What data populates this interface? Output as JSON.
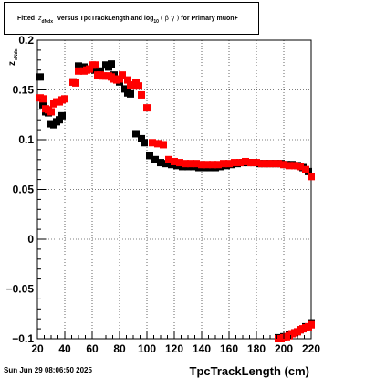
{
  "title": {
    "fitted": "Fitted",
    "z": "z",
    "z_sub": "dNdx",
    "versus": "versus TpcTrackLength and log",
    "log_sub": "10",
    "beta_gamma": "( β γ )",
    "rest": "for Primary muon+"
  },
  "timestamp": "Sun Jun 29 08:06:50 2025",
  "chart_data": {
    "type": "scatter",
    "xlabel": "TpcTrackLength (cm)",
    "ylabel": "z",
    "ylabel_sub": "dNdx",
    "xlim": [
      20,
      220
    ],
    "ylim": [
      -0.1,
      0.2
    ],
    "xticks": [
      20,
      40,
      60,
      80,
      100,
      120,
      140,
      160,
      180,
      200,
      220
    ],
    "yticks": [
      {
        "value": -0.1,
        "label": "−0.1"
      },
      {
        "value": -0.05,
        "label": "−0.05"
      },
      {
        "value": 0,
        "label": "0"
      },
      {
        "value": 0.05,
        "label": "0.05"
      },
      {
        "value": 0.1,
        "label": "0.1"
      },
      {
        "value": 0.15,
        "label": "0.15"
      },
      {
        "value": 0.2,
        "label": "0.2"
      }
    ],
    "grid": true,
    "series": [
      {
        "color": "#000000",
        "points": [
          [
            22,
            0.163
          ],
          [
            24,
            0.135
          ],
          [
            26,
            0.128
          ],
          [
            28,
            0.127
          ],
          [
            30,
            0.116
          ],
          [
            32,
            0.115
          ],
          [
            34,
            0.118
          ],
          [
            36,
            0.12
          ],
          [
            38,
            0.124
          ],
          [
            46,
            0.158
          ],
          [
            50,
            0.174
          ],
          [
            54,
            0.173
          ],
          [
            58,
            0.171
          ],
          [
            62,
            0.17
          ],
          [
            66,
            0.169
          ],
          [
            70,
            0.175
          ],
          [
            72,
            0.173
          ],
          [
            74,
            0.176
          ],
          [
            76,
            0.165
          ],
          [
            80,
            0.158
          ],
          [
            84,
            0.151
          ],
          [
            86,
            0.147
          ],
          [
            88,
            0.146
          ],
          [
            92,
            0.106
          ],
          [
            96,
            0.101
          ],
          [
            98,
            0.097
          ],
          [
            102,
            0.084
          ],
          [
            106,
            0.08
          ],
          [
            110,
            0.077
          ],
          [
            114,
            0.076
          ],
          [
            118,
            0.075
          ],
          [
            122,
            0.074
          ],
          [
            126,
            0.073
          ],
          [
            130,
            0.073
          ],
          [
            134,
            0.073
          ],
          [
            138,
            0.072
          ],
          [
            142,
            0.072
          ],
          [
            146,
            0.072
          ],
          [
            150,
            0.072
          ],
          [
            154,
            0.073
          ],
          [
            158,
            0.074
          ],
          [
            162,
            0.075
          ],
          [
            166,
            0.076
          ],
          [
            170,
            0.077
          ],
          [
            174,
            0.077
          ],
          [
            178,
            0.077
          ],
          [
            182,
            0.076
          ],
          [
            186,
            0.076
          ],
          [
            190,
            0.076
          ],
          [
            194,
            0.076
          ],
          [
            198,
            0.076
          ],
          [
            202,
            0.075
          ],
          [
            206,
            0.075
          ],
          [
            210,
            0.074
          ],
          [
            214,
            0.072
          ],
          [
            218,
            0.068
          ],
          [
            196,
            -0.099
          ],
          [
            200,
            -0.098
          ],
          [
            204,
            -0.096
          ],
          [
            208,
            -0.094
          ],
          [
            212,
            -0.091
          ],
          [
            216,
            -0.088
          ],
          [
            220,
            -0.084
          ]
        ]
      },
      {
        "color": "#ff0000",
        "points": [
          [
            22,
            0.142
          ],
          [
            24,
            0.141
          ],
          [
            26,
            0.131
          ],
          [
            28,
            0.13
          ],
          [
            30,
            0.128
          ],
          [
            32,
            0.136
          ],
          [
            34,
            0.138
          ],
          [
            36,
            0.138
          ],
          [
            38,
            0.14
          ],
          [
            40,
            0.141
          ],
          [
            46,
            0.158
          ],
          [
            48,
            0.157
          ],
          [
            50,
            0.169
          ],
          [
            54,
            0.169
          ],
          [
            56,
            0.17
          ],
          [
            58,
            0.171
          ],
          [
            60,
            0.175
          ],
          [
            62,
            0.175
          ],
          [
            64,
            0.165
          ],
          [
            66,
            0.165
          ],
          [
            68,
            0.164
          ],
          [
            70,
            0.164
          ],
          [
            72,
            0.164
          ],
          [
            74,
            0.163
          ],
          [
            76,
            0.161
          ],
          [
            78,
            0.16
          ],
          [
            80,
            0.161
          ],
          [
            82,
            0.165
          ],
          [
            86,
            0.16
          ],
          [
            88,
            0.155
          ],
          [
            90,
            0.154
          ],
          [
            92,
            0.157
          ],
          [
            94,
            0.154
          ],
          [
            96,
            0.145
          ],
          [
            100,
            0.132
          ],
          [
            104,
            0.097
          ],
          [
            108,
            0.096
          ],
          [
            112,
            0.095
          ],
          [
            116,
            0.08
          ],
          [
            120,
            0.078
          ],
          [
            124,
            0.077
          ],
          [
            128,
            0.076
          ],
          [
            132,
            0.076
          ],
          [
            136,
            0.076
          ],
          [
            140,
            0.075
          ],
          [
            144,
            0.075
          ],
          [
            148,
            0.075
          ],
          [
            152,
            0.075
          ],
          [
            156,
            0.076
          ],
          [
            160,
            0.076
          ],
          [
            164,
            0.077
          ],
          [
            168,
            0.077
          ],
          [
            172,
            0.078
          ],
          [
            176,
            0.077
          ],
          [
            180,
            0.077
          ],
          [
            184,
            0.076
          ],
          [
            188,
            0.076
          ],
          [
            192,
            0.076
          ],
          [
            196,
            0.076
          ],
          [
            200,
            0.075
          ],
          [
            204,
            0.074
          ],
          [
            208,
            0.074
          ],
          [
            212,
            0.073
          ],
          [
            216,
            0.07
          ],
          [
            220,
            0.063
          ],
          [
            196,
            -0.1
          ],
          [
            198,
            -0.1
          ],
          [
            200,
            -0.099
          ],
          [
            202,
            -0.098
          ],
          [
            204,
            -0.097
          ],
          [
            206,
            -0.095
          ],
          [
            208,
            -0.094
          ],
          [
            210,
            -0.093
          ],
          [
            212,
            -0.091
          ],
          [
            214,
            -0.09
          ],
          [
            216,
            -0.089
          ],
          [
            218,
            -0.088
          ],
          [
            220,
            -0.086
          ]
        ]
      }
    ]
  }
}
